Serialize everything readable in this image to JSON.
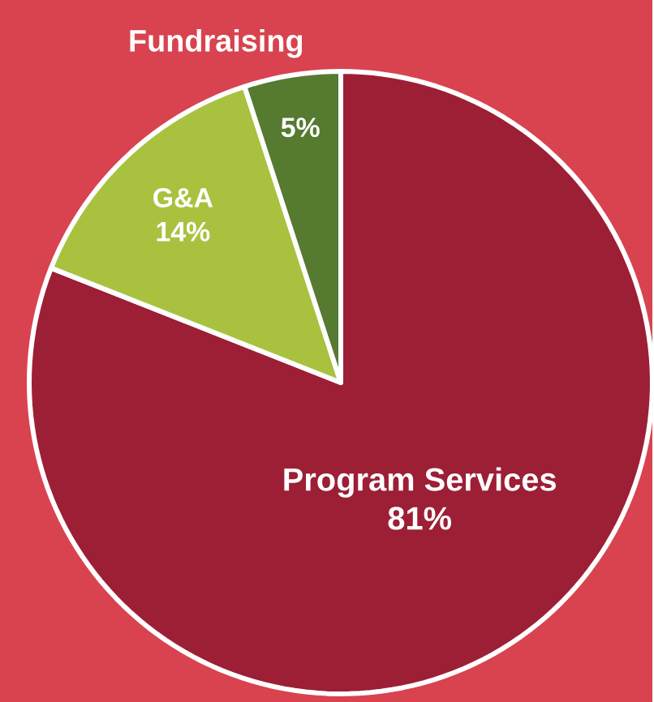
{
  "chart_data": {
    "type": "pie",
    "categories": [
      "Program Services",
      "G&A",
      "Fundraising"
    ],
    "values": [
      81,
      14,
      5
    ],
    "colors": [
      "#9c1f36",
      "#a8c23f",
      "#557a30"
    ],
    "value_labels": [
      "81%",
      "14%",
      "5%"
    ]
  }
}
